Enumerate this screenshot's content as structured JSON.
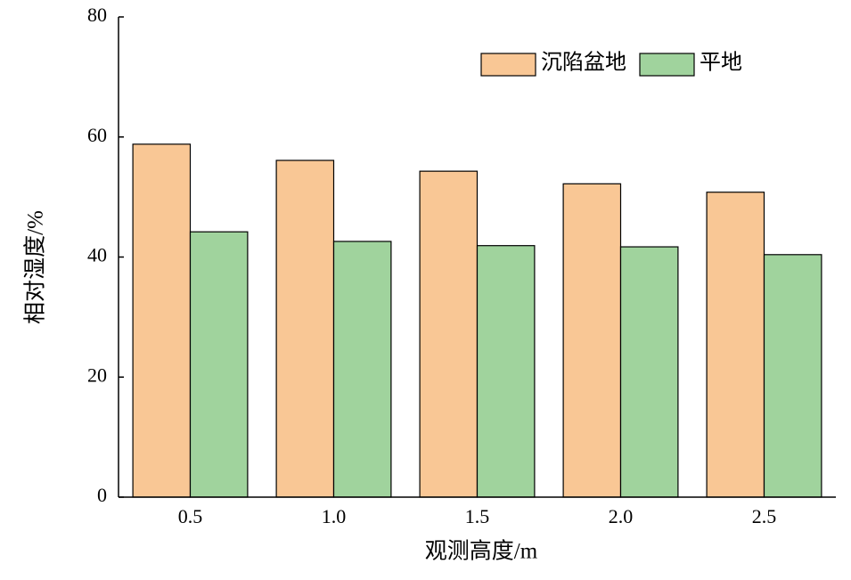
{
  "chart_data": {
    "type": "bar",
    "x_label": "观测高度/m",
    "y_label": "相对湿度/%",
    "categories": [
      "0.5",
      "1.0",
      "1.5",
      "2.0",
      "2.5"
    ],
    "series": [
      {
        "name": "沉陷盆地",
        "color": "#f9c795",
        "values": [
          58.8,
          56.1,
          54.3,
          52.2,
          50.8
        ]
      },
      {
        "name": "平地",
        "color": "#a0d39d",
        "values": [
          44.2,
          42.6,
          41.9,
          41.7,
          40.4
        ]
      }
    ],
    "ylim": [
      0,
      80
    ],
    "yticks": [
      0,
      20,
      40,
      60,
      80
    ],
    "grid": false,
    "legend": "upper right"
  }
}
